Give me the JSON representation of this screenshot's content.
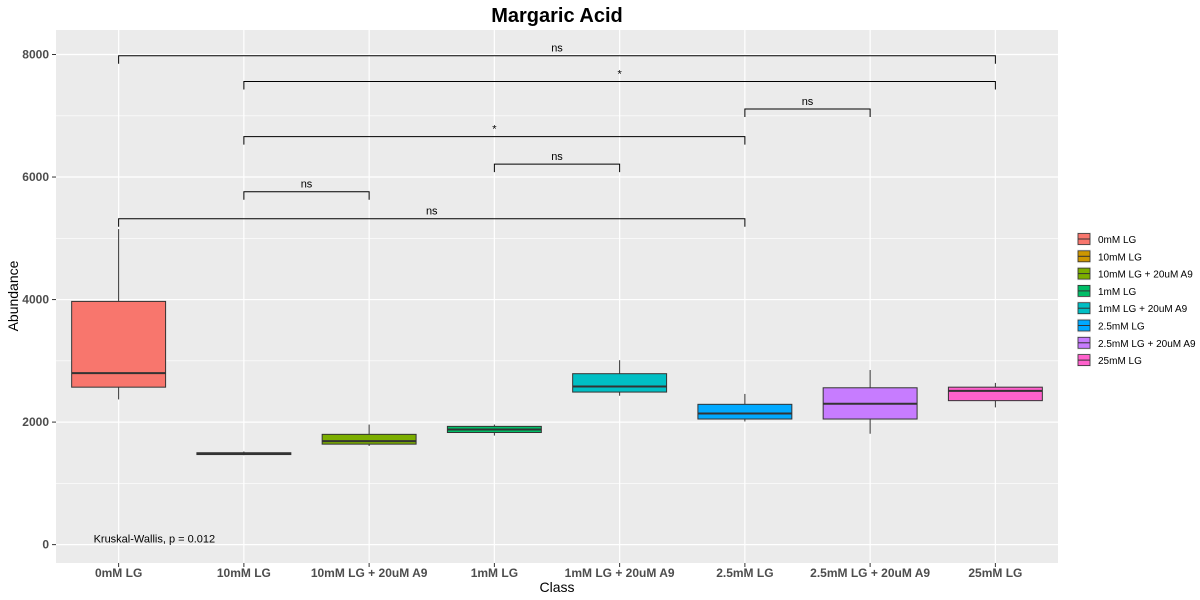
{
  "chart_data": {
    "type": "boxplot",
    "title": "Margaric Acid",
    "xlabel": "Class",
    "ylabel": "Abundance",
    "ylim": [
      -300,
      8400
    ],
    "yticks": [
      0,
      2000,
      4000,
      6000,
      8000
    ],
    "categories": [
      "0mM LG",
      "10mM LG",
      "10mM LG + 20uM A9",
      "1mM LG",
      "1mM LG + 20uM A9",
      "2.5mM LG",
      "2.5mM LG + 20uM A9",
      "25mM LG"
    ],
    "boxes": [
      {
        "category": "0mM LG",
        "min": 2370,
        "q1": 2570,
        "median": 2800,
        "q3": 3970,
        "max": 5150,
        "color": "#F8766D"
      },
      {
        "category": "10mM LG",
        "min": 1460,
        "q1": 1470,
        "median": 1485,
        "q3": 1500,
        "max": 1520,
        "color": "#CD9600"
      },
      {
        "category": "10mM LG + 20uM A9",
        "min": 1610,
        "q1": 1640,
        "median": 1690,
        "q3": 1800,
        "max": 1960,
        "color": "#7CAE00"
      },
      {
        "category": "1mM LG",
        "min": 1780,
        "q1": 1830,
        "median": 1880,
        "q3": 1930,
        "max": 1960,
        "color": "#00BE67"
      },
      {
        "category": "1mM LG + 20uM A9",
        "min": 2430,
        "q1": 2490,
        "median": 2580,
        "q3": 2790,
        "max": 3010,
        "color": "#00BFC4"
      },
      {
        "category": "2.5mM LG",
        "min": 2010,
        "q1": 2050,
        "median": 2140,
        "q3": 2290,
        "max": 2460,
        "color": "#00A9FF"
      },
      {
        "category": "2.5mM LG + 20uM A9",
        "min": 1810,
        "q1": 2050,
        "median": 2300,
        "q3": 2560,
        "max": 2850,
        "color": "#C77CFF"
      },
      {
        "category": "25mM LG",
        "min": 2240,
        "q1": 2350,
        "median": 2510,
        "q3": 2570,
        "max": 2640,
        "color": "#FF61CC"
      }
    ],
    "comparisons": [
      {
        "from": 0,
        "to": 7,
        "y": 7980,
        "label": "ns"
      },
      {
        "from": 1,
        "to": 7,
        "y": 7560,
        "label": "*"
      },
      {
        "from": 5,
        "to": 6,
        "y": 7110,
        "label": "ns"
      },
      {
        "from": 1,
        "to": 5,
        "y": 6660,
        "label": "*"
      },
      {
        "from": 3,
        "to": 4,
        "y": 6210,
        "label": "ns"
      },
      {
        "from": 1,
        "to": 2,
        "y": 5760,
        "label": "ns"
      },
      {
        "from": 0,
        "to": 5,
        "y": 5320,
        "label": "ns"
      }
    ],
    "annotation": {
      "text": "Kruskal-Wallis, p = 0.012",
      "x": -0.2,
      "y": 100
    },
    "legend": {
      "position": "right",
      "entries": [
        "0mM LG",
        "10mM LG",
        "10mM LG + 20uM A9",
        "1mM LG",
        "1mM LG + 20uM A9",
        "2.5mM LG",
        "2.5mM LG + 20uM A9",
        "25mM LG"
      ]
    },
    "grid": true,
    "panel_color": "#EBEBEB"
  }
}
